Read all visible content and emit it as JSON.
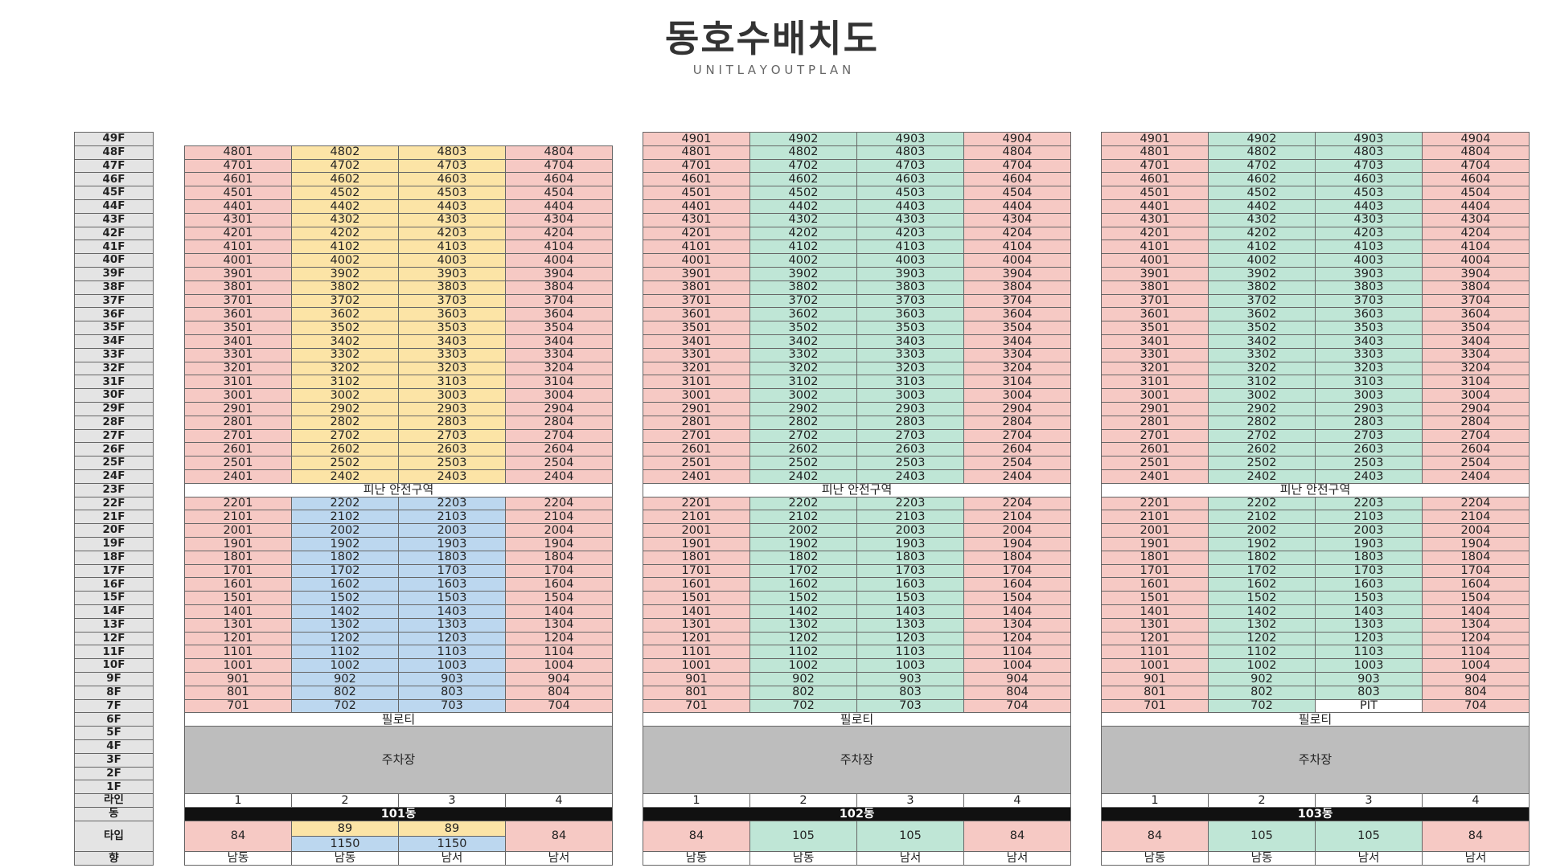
{
  "header": {
    "title": "동호수배치도",
    "subtitle": "U N I T   L A Y O U T   P L A N"
  },
  "floor_labels": [
    "49F",
    "48F",
    "47F",
    "46F",
    "45F",
    "44F",
    "43F",
    "42F",
    "41F",
    "40F",
    "39F",
    "38F",
    "37F",
    "36F",
    "35F",
    "34F",
    "33F",
    "32F",
    "31F",
    "30F",
    "29F",
    "28F",
    "27F",
    "26F",
    "25F",
    "24F",
    "23F",
    "22F",
    "21F",
    "20F",
    "19F",
    "18F",
    "17F",
    "16F",
    "15F",
    "14F",
    "13F",
    "12F",
    "11F",
    "10F",
    "9F",
    "8F",
    "7F",
    "6F",
    "5F",
    "4F",
    "3F",
    "2F",
    "1F"
  ],
  "footer_labels": {
    "line": "라인",
    "dong": "동",
    "type": "타입",
    "orientation": "향"
  },
  "common": {
    "refuge_area": "피난 안전구역",
    "piloti": "필로티",
    "parking": "주차장",
    "pit": "PIT"
  },
  "colors": {
    "pink": "#f6c9c4",
    "yellow": "#fce4a6",
    "blue": "#bcd7ef",
    "green": "#bfe6d6",
    "gray": "#bdbdbd",
    "black": "#111111"
  },
  "buildings": [
    {
      "name": "101동",
      "top_floor": 48,
      "lines": [
        "1",
        "2",
        "3",
        "4"
      ],
      "upper_colors": [
        "pink",
        "yellow",
        "yellow",
        "pink"
      ],
      "lower_colors": [
        "pink",
        "blue",
        "blue",
        "pink"
      ],
      "types": [
        [
          "84"
        ],
        [
          "89",
          "1150"
        ],
        [
          "89",
          "1150"
        ],
        [
          "84"
        ]
      ],
      "orientations": [
        "남동",
        "남동",
        "남서",
        "남서"
      ],
      "pit_unit": ""
    },
    {
      "name": "102동",
      "top_floor": 49,
      "lines": [
        "1",
        "2",
        "3",
        "4"
      ],
      "upper_colors": [
        "pink",
        "green",
        "green",
        "pink"
      ],
      "lower_colors": [
        "pink",
        "green",
        "green",
        "pink"
      ],
      "types": [
        [
          "84"
        ],
        [
          "105"
        ],
        [
          "105"
        ],
        [
          "84"
        ]
      ],
      "orientations": [
        "남동",
        "남동",
        "남서",
        "남서"
      ],
      "pit_unit": ""
    },
    {
      "name": "103동",
      "top_floor": 49,
      "lines": [
        "1",
        "2",
        "3",
        "4"
      ],
      "upper_colors": [
        "pink",
        "green",
        "green",
        "pink"
      ],
      "lower_colors": [
        "pink",
        "green",
        "green",
        "pink"
      ],
      "types": [
        [
          "84"
        ],
        [
          "105"
        ],
        [
          "105"
        ],
        [
          "84"
        ]
      ],
      "orientations": [
        "남동",
        "남동",
        "남서",
        "남서"
      ],
      "pit_unit": "703"
    }
  ]
}
